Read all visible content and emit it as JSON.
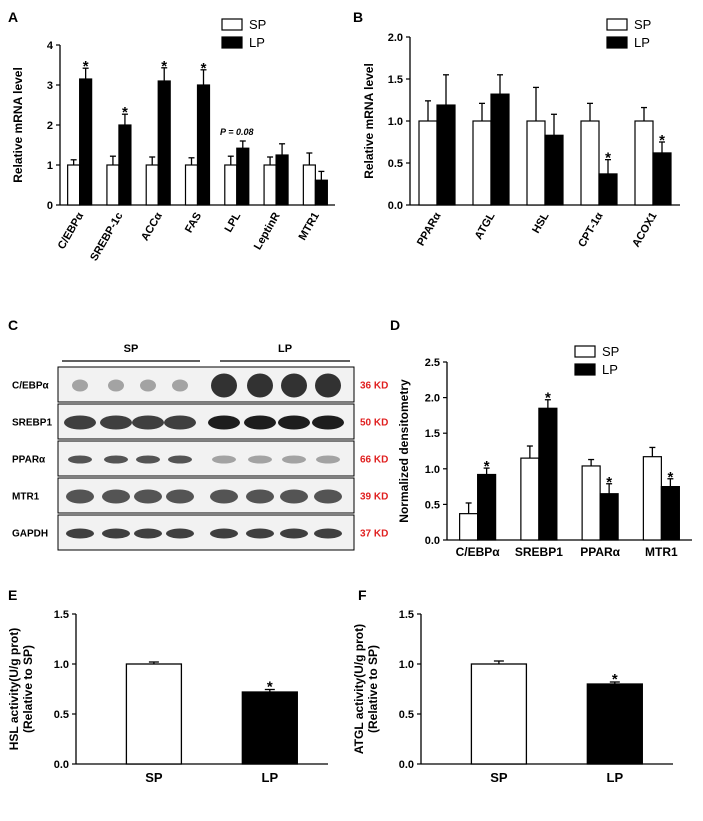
{
  "chart_data": [
    {
      "panel": "A",
      "type": "bar",
      "ylabel": "Relative mRNA level",
      "ylim": [
        0,
        4
      ],
      "yticks": [
        "0",
        "1",
        "2",
        "3",
        "4"
      ],
      "categories": [
        "C/EBPα",
        "SREBP-1c",
        "ACCα",
        "FAS",
        "LPL",
        "LeptinR",
        "MTR1"
      ],
      "series": [
        {
          "name": "SP",
          "values": [
            1.0,
            1.0,
            1.0,
            1.0,
            1.0,
            1.0,
            1.0
          ],
          "err": [
            0.13,
            0.22,
            0.2,
            0.18,
            0.22,
            0.2,
            0.3
          ]
        },
        {
          "name": "LP",
          "values": [
            3.15,
            2.0,
            3.1,
            3.0,
            1.42,
            1.25,
            0.62
          ],
          "err": [
            0.27,
            0.27,
            0.33,
            0.38,
            0.18,
            0.28,
            0.22
          ]
        }
      ],
      "stars": [
        "*",
        "*",
        "*",
        "*",
        "",
        "",
        ""
      ],
      "annotation": "P = 0.08",
      "legend": [
        "SP",
        "LP"
      ]
    },
    {
      "panel": "B",
      "type": "bar",
      "ylabel": "Relative mRNA level",
      "ylim": [
        0,
        2
      ],
      "yticks": [
        "0.0",
        "0.5",
        "1.0",
        "1.5",
        "2.0"
      ],
      "categories": [
        "PPARα",
        "ATGL",
        "HSL",
        "CPT-1α",
        "ACOX1"
      ],
      "series": [
        {
          "name": "SP",
          "values": [
            1.0,
            1.0,
            1.0,
            1.0,
            1.0
          ],
          "err": [
            0.24,
            0.21,
            0.4,
            0.21,
            0.16
          ]
        },
        {
          "name": "LP",
          "values": [
            1.19,
            1.32,
            0.83,
            0.37,
            0.62
          ],
          "err": [
            0.36,
            0.23,
            0.25,
            0.17,
            0.13
          ]
        }
      ],
      "stars": [
        "",
        "",
        "",
        "*",
        "*"
      ],
      "legend": [
        "SP",
        "LP"
      ]
    },
    {
      "panel": "D",
      "type": "bar",
      "ylabel": "Normalized densitometry",
      "ylim": [
        0,
        2.5
      ],
      "yticks": [
        "0.0",
        "0.5",
        "1.0",
        "1.5",
        "2.0",
        "2.5"
      ],
      "categories": [
        "C/EBPα",
        "SREBP1",
        "PPARα",
        "MTR1"
      ],
      "series": [
        {
          "name": "SP",
          "values": [
            0.37,
            1.15,
            1.04,
            1.17
          ],
          "err": [
            0.15,
            0.17,
            0.09,
            0.13
          ]
        },
        {
          "name": "LP",
          "values": [
            0.92,
            1.85,
            0.65,
            0.75
          ],
          "err": [
            0.09,
            0.12,
            0.14,
            0.11
          ]
        }
      ],
      "stars": [
        "*",
        "*",
        "*",
        "*"
      ],
      "legend": [
        "SP",
        "LP"
      ]
    },
    {
      "panel": "E",
      "type": "bar",
      "ylabel": [
        "HSL activity(U/g prot)",
        "(Relative to SP)"
      ],
      "ylim": [
        0,
        1.5
      ],
      "yticks": [
        "0.0",
        "0.5",
        "1.0",
        "1.5"
      ],
      "categories": [
        "SP",
        "LP"
      ],
      "values": [
        1.0,
        0.72
      ],
      "err": [
        0.02,
        0.025
      ],
      "stars": [
        "",
        "*"
      ]
    },
    {
      "panel": "F",
      "type": "bar",
      "ylabel": [
        "ATGL activity(U/g prot)",
        "(Relative to SP)"
      ],
      "ylim": [
        0,
        1.5
      ],
      "yticks": [
        "0.0",
        "0.5",
        "1.0",
        "1.5"
      ],
      "categories": [
        "SP",
        "LP"
      ],
      "values": [
        1.0,
        0.8
      ],
      "err": [
        0.03,
        0.02
      ],
      "stars": [
        "",
        "*"
      ]
    }
  ],
  "blot": {
    "panel": "C",
    "groups": [
      "SP",
      "LP"
    ],
    "rows": [
      {
        "name": "C/EBPα",
        "kd": "36 KD"
      },
      {
        "name": "SREBP1",
        "kd": "50 KD"
      },
      {
        "name": "PPARα",
        "kd": "66 KD"
      },
      {
        "name": "MTR1",
        "kd": "39 KD"
      },
      {
        "name": "GAPDH",
        "kd": "37 KD"
      }
    ]
  },
  "colors": {
    "bar_sp": "#ffffff",
    "bar_lp": "#000000",
    "kd_label": "#e02020"
  }
}
